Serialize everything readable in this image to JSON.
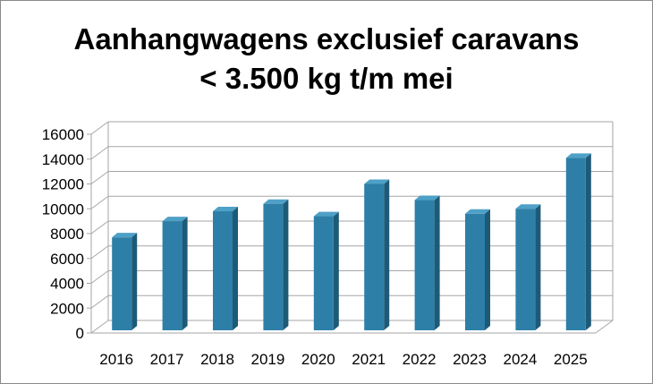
{
  "chart_data": {
    "type": "bar",
    "title_lines": [
      "Aanhangwagens exclusief caravans",
      "< 3.500 kg t/m mei"
    ],
    "categories": [
      "2016",
      "2017",
      "2018",
      "2019",
      "2020",
      "2021",
      "2022",
      "2023",
      "2024",
      "2025"
    ],
    "values": [
      7700,
      9000,
      9800,
      10400,
      9400,
      12000,
      10700,
      9600,
      10000,
      14100
    ],
    "ylim": [
      0,
      16000
    ],
    "yticks": [
      0,
      2000,
      4000,
      6000,
      8000,
      10000,
      12000,
      14000,
      16000
    ],
    "grid": true,
    "legend": "none",
    "colors": {
      "bar_front": "#2e7fa8",
      "bar_side": "#1d5a78",
      "bar_top": "#4ea0c6",
      "grid": "#a6a6a6"
    }
  }
}
